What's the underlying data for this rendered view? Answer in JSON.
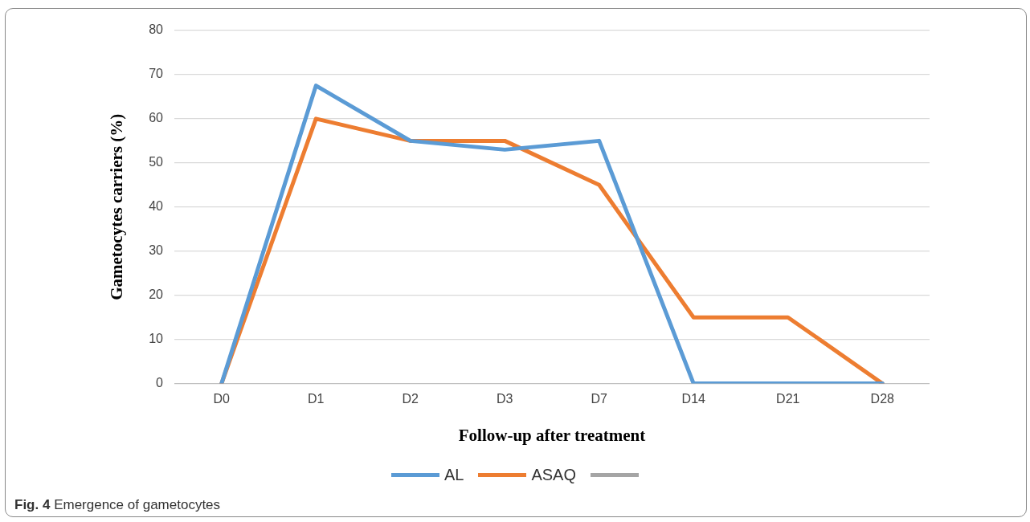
{
  "chart_data": {
    "type": "line",
    "xlabel": "Follow-up after treatment",
    "ylabel": "Gametocytes carriers (%)",
    "categories": [
      "D0",
      "D1",
      "D2",
      "D3",
      "D7",
      "D14",
      "D21",
      "D28"
    ],
    "series": [
      {
        "name": "AL",
        "color": "#5b9bd5",
        "values": [
          0,
          67.5,
          55,
          53,
          55,
          0,
          0,
          0
        ]
      },
      {
        "name": "ASAQ",
        "color": "#ed7d31",
        "values": [
          0,
          60,
          55,
          55,
          45,
          15,
          15,
          0
        ]
      }
    ],
    "ylim": [
      0,
      80
    ],
    "yticks": [
      0,
      10,
      20,
      30,
      40,
      50,
      60,
      70,
      80
    ],
    "grid": "y",
    "legend": "bottom",
    "marker": "none",
    "line_style": "solid",
    "annotations": [
      "Fig. 4 Emergence of gametocytes"
    ]
  }
}
